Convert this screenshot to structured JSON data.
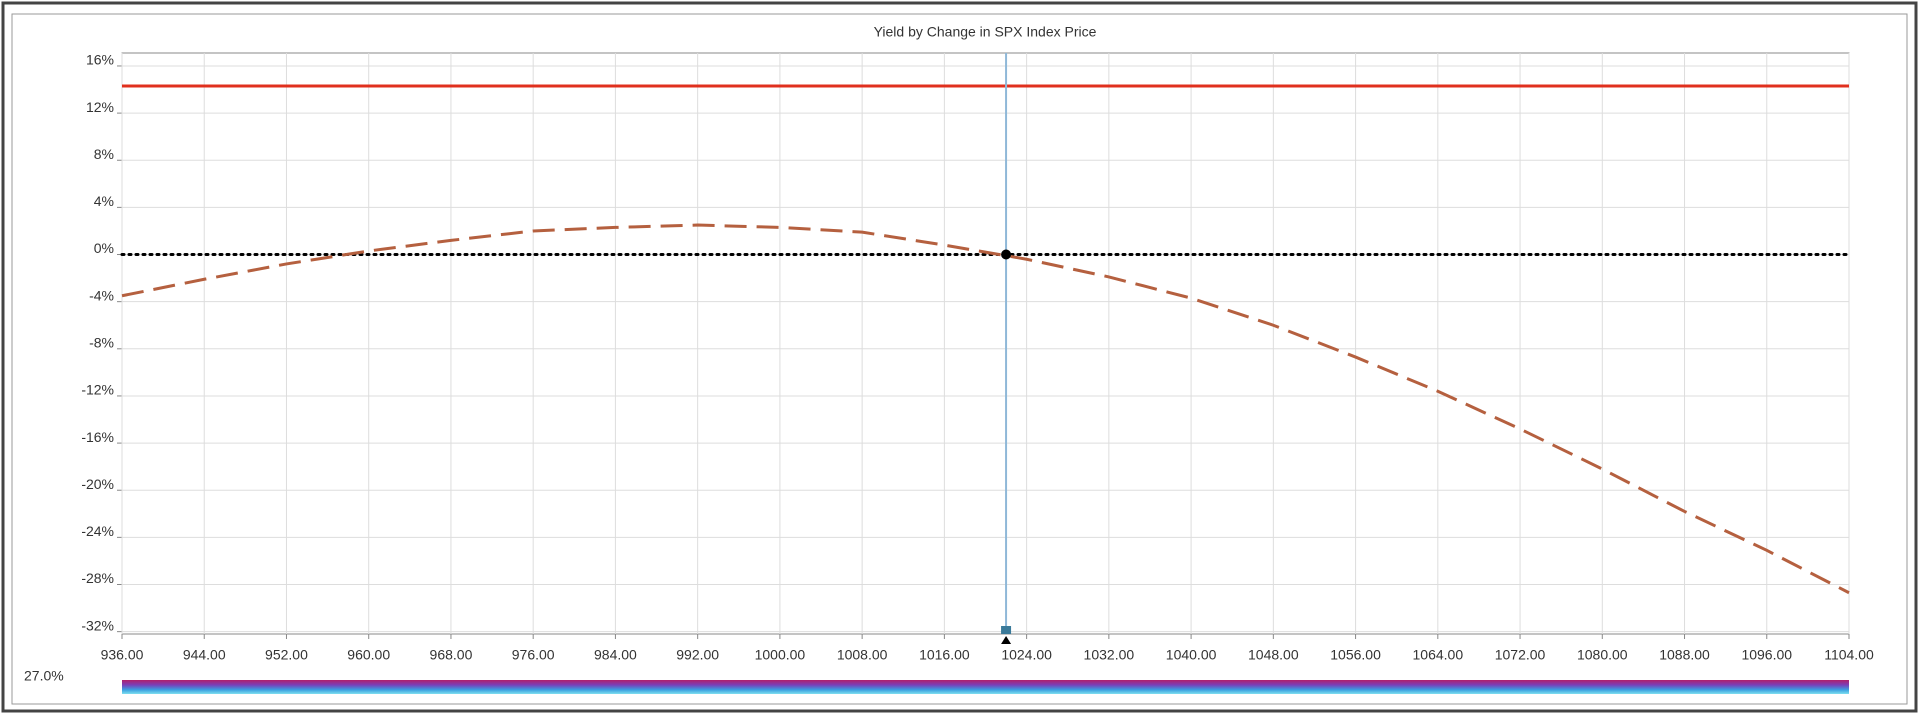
{
  "chart_data": {
    "type": "line",
    "title": "Yield by Change in SPX Index Price",
    "x": [
      936,
      944,
      952,
      960,
      968,
      976,
      984,
      992,
      1000,
      1008,
      1016,
      1024,
      1032,
      1040,
      1048,
      1056,
      1064,
      1072,
      1080,
      1088,
      1096,
      1104
    ],
    "series": [
      {
        "color": "#e0301e",
        "style": "solid",
        "values": [
          14.3,
          14.3,
          14.3,
          14.3,
          14.3,
          14.3,
          14.3,
          14.3,
          14.3,
          14.3,
          14.3,
          14.3,
          14.3,
          14.3,
          14.3,
          14.3,
          14.3,
          14.3,
          14.3,
          14.3,
          14.3,
          14.3
        ]
      },
      {
        "color": "#000000",
        "style": "dotted",
        "values": [
          0,
          0,
          0,
          0,
          0,
          0,
          0,
          0,
          0,
          0,
          0,
          0,
          0,
          0,
          0,
          0,
          0,
          0,
          0,
          0,
          0,
          0
        ]
      },
      {
        "color": "#b5603f",
        "style": "dashed",
        "values": [
          -3.5,
          -2.1,
          -0.8,
          0.3,
          1.2,
          2.0,
          2.3,
          2.5,
          2.3,
          1.9,
          0.8,
          -0.4,
          -1.9,
          -3.7,
          -6.0,
          -8.7,
          -11.6,
          -14.8,
          -18.2,
          -21.8,
          -25.1,
          -28.7
        ]
      }
    ],
    "cursor_x": 1022,
    "cursor_y": 0,
    "cursor_color": "#8fb8d8",
    "xlim": [
      936,
      1104
    ],
    "xticks": [
      {
        "value": 936,
        "label": "936.00"
      },
      {
        "value": 944,
        "label": "944.00"
      },
      {
        "value": 952,
        "label": "952.00"
      },
      {
        "value": 960,
        "label": "960.00"
      },
      {
        "value": 968,
        "label": "968.00"
      },
      {
        "value": 976,
        "label": "976.00"
      },
      {
        "value": 984,
        "label": "984.00"
      },
      {
        "value": 992,
        "label": "992.00"
      },
      {
        "value": 1000,
        "label": "1000.00"
      },
      {
        "value": 1008,
        "label": "1008.00"
      },
      {
        "value": 1016,
        "label": "1016.00"
      },
      {
        "value": 1024,
        "label": "1024.00"
      },
      {
        "value": 1032,
        "label": "1032.00"
      },
      {
        "value": 1040,
        "label": "1040.00"
      },
      {
        "value": 1048,
        "label": "1048.00"
      },
      {
        "value": 1056,
        "label": "1056.00"
      },
      {
        "value": 1064,
        "label": "1064.00"
      },
      {
        "value": 1072,
        "label": "1072.00"
      },
      {
        "value": 1080,
        "label": "1080.00"
      },
      {
        "value": 1088,
        "label": "1088.00"
      },
      {
        "value": 1096,
        "label": "1096.00"
      },
      {
        "value": 1104,
        "label": "1104.00"
      }
    ],
    "ylim": [
      -32.2,
      17.1
    ],
    "yticks": [
      {
        "value": 16,
        "label": "16%"
      },
      {
        "value": 12,
        "label": "12%"
      },
      {
        "value": 8,
        "label": "8%"
      },
      {
        "value": 4,
        "label": "4%"
      },
      {
        "value": 0,
        "label": "0%"
      },
      {
        "value": -4,
        "label": "-4%"
      },
      {
        "value": -8,
        "label": "-8%"
      },
      {
        "value": -12,
        "label": "-12%"
      },
      {
        "value": -16,
        "label": "-16%"
      },
      {
        "value": -20,
        "label": "-20%"
      },
      {
        "value": -24,
        "label": "-24%"
      },
      {
        "value": -28,
        "label": "-28%"
      },
      {
        "value": -32,
        "label": "-32%"
      }
    ],
    "grid": true,
    "status_label": "27.0%"
  }
}
